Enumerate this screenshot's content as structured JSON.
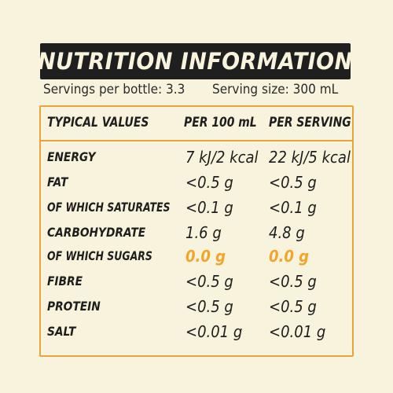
{
  "title": "NUTRITION INFORMATION",
  "servings": {
    "per_bottle": "Servings per bottle: 3.3",
    "size": "Serving size: 300 mL"
  },
  "table": {
    "headers": [
      "TYPICAL VALUES",
      "PER 100 mL",
      "PER SERVING"
    ],
    "rows": [
      {
        "label": "ENERGY",
        "per_100ml": "7 kJ/2 kcal",
        "per_serving": "22 kJ/5 kcal"
      },
      {
        "label": "FAT",
        "per_100ml": "<0.5 g",
        "per_serving": "<0.5 g"
      },
      {
        "label": "OF WHICH SATURATES",
        "per_100ml": "<0.1 g",
        "per_serving": "<0.1 g"
      },
      {
        "label": "CARBOHYDRATE",
        "per_100ml": "1.6 g",
        "per_serving": "4.8 g"
      },
      {
        "label": "OF WHICH SUGARS",
        "per_100ml": "0.0 g",
        "per_serving": "0.0 g"
      },
      {
        "label": "FIBRE",
        "per_100ml": "<0.5 g",
        "per_serving": "<0.5 g"
      },
      {
        "label": "PROTEIN",
        "per_100ml": "<0.5 g",
        "per_serving": "<0.5 g"
      },
      {
        "label": "SALT",
        "per_100ml": "<0.01 g",
        "per_serving": "<0.01 g"
      }
    ]
  },
  "colors": {
    "background": "#f8f3dc",
    "title_bar": "#1f1f1f",
    "border": "#e9a33c",
    "highlight": "#f0a52c",
    "text": "#1e1e1e"
  }
}
